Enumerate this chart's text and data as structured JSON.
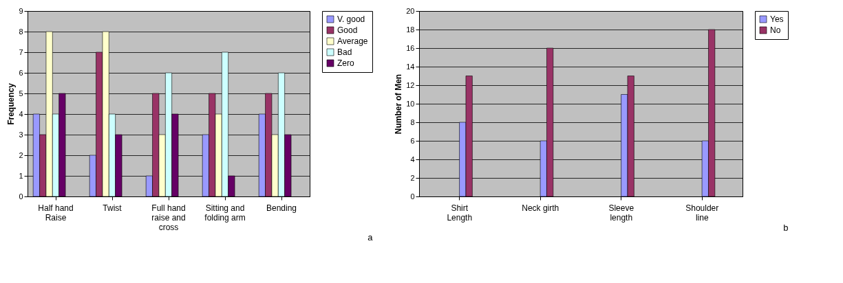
{
  "chart_data": [
    {
      "type": "bar",
      "ylabel": "Frequency",
      "categories": [
        "Half hand Raise",
        "Twist",
        "Full hand raise and cross",
        "Sitting and folding arm",
        "Bending"
      ],
      "series": [
        {
          "name": "V. good",
          "color": "#9999ff",
          "values": [
            4,
            2,
            1,
            3,
            4
          ]
        },
        {
          "name": "Good",
          "color": "#993366",
          "values": [
            3,
            7,
            5,
            5,
            5
          ]
        },
        {
          "name": "Average",
          "color": "#ffffcc",
          "values": [
            8,
            8,
            3,
            4,
            3
          ]
        },
        {
          "name": "Bad",
          "color": "#ccffff",
          "values": [
            4,
            4,
            6,
            7,
            6
          ]
        },
        {
          "name": "Zero",
          "color": "#660066",
          "values": [
            5,
            3,
            4,
            1,
            3
          ]
        }
      ],
      "ylim": [
        0,
        9
      ],
      "yticks": [
        0,
        1,
        2,
        3,
        4,
        5,
        6,
        7,
        8,
        9
      ],
      "grid": "y",
      "legend": "right",
      "annotations": [
        "a"
      ]
    },
    {
      "type": "bar",
      "ylabel": "Number of Men",
      "categories": [
        "Shirt Length",
        "Neck girth",
        "Sleeve length",
        "Shoulder line"
      ],
      "series": [
        {
          "name": "Yes",
          "color": "#9999ff",
          "values": [
            8,
            6,
            11,
            6
          ]
        },
        {
          "name": "No",
          "color": "#993366",
          "values": [
            13,
            16,
            13,
            18
          ]
        }
      ],
      "ylim": [
        0,
        20
      ],
      "yticks": [
        0,
        2,
        4,
        6,
        8,
        10,
        12,
        14,
        16,
        18,
        20
      ],
      "grid": "y",
      "legend": "right",
      "annotations": [
        "b"
      ]
    }
  ]
}
